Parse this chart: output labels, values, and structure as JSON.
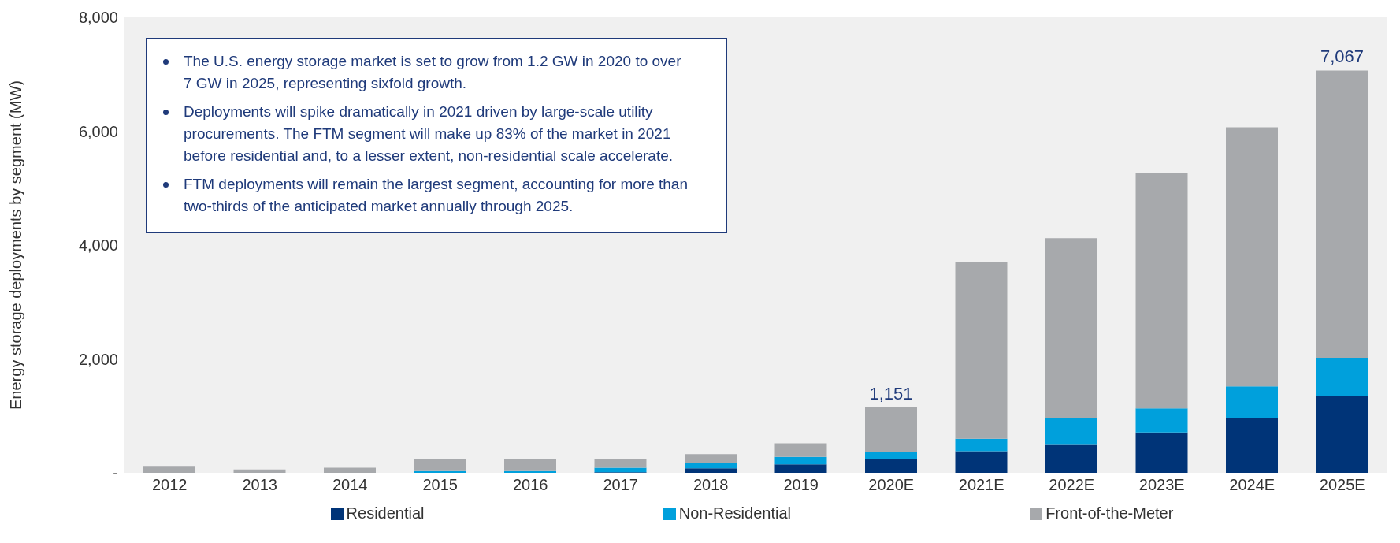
{
  "chart_data": {
    "type": "bar",
    "stacked": true,
    "ylabel": "Energy storage deployments by segment (MW)",
    "categories": [
      "2012",
      "2013",
      "2014",
      "2015",
      "2016",
      "2017",
      "2018",
      "2019",
      "2020E",
      "2021E",
      "2022E",
      "2023E",
      "2024E",
      "2025E"
    ],
    "series": [
      {
        "name": "Residential",
        "color": "#003478",
        "values": [
          0,
          0,
          0,
          0,
          0,
          10,
          80,
          150,
          250,
          380,
          490,
          710,
          960,
          1350
        ]
      },
      {
        "name": "Non-Residential",
        "color": "#00a0dc",
        "values": [
          0,
          0,
          0,
          30,
          30,
          80,
          90,
          130,
          120,
          220,
          480,
          420,
          560,
          670
        ]
      },
      {
        "name": "Front-of-the-Meter",
        "color": "#a7a9ac",
        "values": [
          120,
          60,
          90,
          220,
          220,
          160,
          160,
          240,
          781,
          3110,
          3150,
          4130,
          4550,
          5047
        ]
      }
    ],
    "totals": [
      null,
      null,
      null,
      null,
      null,
      null,
      null,
      null,
      "1,151",
      null,
      null,
      null,
      null,
      "7,067"
    ],
    "ylim": [
      0,
      8000
    ],
    "yticks": [
      {
        "value": 0,
        "label": "-"
      },
      {
        "value": 2000,
        "label": "2,000"
      },
      {
        "value": 4000,
        "label": "4,000"
      },
      {
        "value": 6000,
        "label": "6,000"
      },
      {
        "value": 8000,
        "label": "8,000"
      }
    ],
    "grid": false,
    "legend": "bottom",
    "annotations": [
      "The U.S. energy storage market is set to grow from 1.2 GW in 2020 to over 7 GW in 2025, representing sixfold growth.",
      "Deployments will spike dramatically in 2021 driven by large-scale utility procurements. The FTM segment will make up 83% of the market in 2021 before residential and, to a lesser extent, non-residential scale accelerate.",
      "FTM deployments will remain the largest segment, accounting for more than two-thirds of the anticipated market annually through 2025."
    ]
  }
}
